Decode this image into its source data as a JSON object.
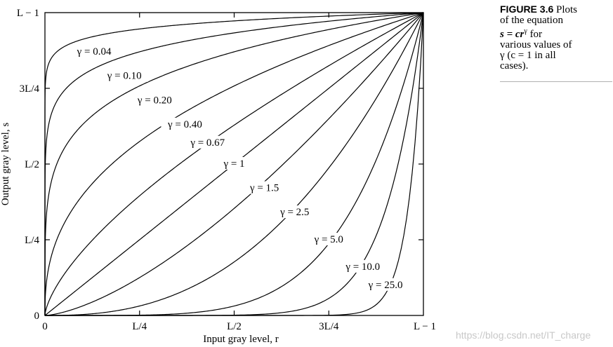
{
  "caption": {
    "figure": "FIGURE 3.6",
    "line1": "Plots",
    "line2": "of the equation",
    "line3": "s = cr",
    "line3_sup": "γ",
    "line3_tail": " for",
    "line4": "various values of",
    "line5": "γ (c = 1 in all",
    "line6": "cases)."
  },
  "watermark": "https://blog.csdn.net/IT_charge",
  "chart_data": {
    "type": "line",
    "title": "",
    "xlabel": "Input gray level, r",
    "ylabel": "Output gray level, s",
    "xlim": [
      0,
      1
    ],
    "ylim": [
      0,
      1
    ],
    "x_ticks": [
      {
        "value": 0,
        "label": "0"
      },
      {
        "value": 0.25,
        "label": "L/4"
      },
      {
        "value": 0.5,
        "label": "L/2"
      },
      {
        "value": 0.75,
        "label": "3L/4"
      },
      {
        "value": 1,
        "label": "L − 1"
      }
    ],
    "y_ticks": [
      {
        "value": 0,
        "label": "0"
      },
      {
        "value": 0.25,
        "label": "L/4"
      },
      {
        "value": 0.5,
        "label": "L/2"
      },
      {
        "value": 0.75,
        "label": "3L/4"
      },
      {
        "value": 1,
        "label": "L − 1"
      }
    ],
    "grid": false,
    "line_color": "#000000",
    "series": [
      {
        "gamma": 0.04,
        "name": "γ = 0.04",
        "label_x": 0.13
      },
      {
        "gamma": 0.1,
        "name": "γ = 0.10",
        "label_x": 0.21
      },
      {
        "gamma": 0.2,
        "name": "γ = 0.20",
        "label_x": 0.29
      },
      {
        "gamma": 0.4,
        "name": "γ = 0.40",
        "label_x": 0.37
      },
      {
        "gamma": 0.67,
        "name": "γ = 0.67",
        "label_x": 0.43
      },
      {
        "gamma": 1,
        "name": "γ = 1",
        "label_x": 0.5
      },
      {
        "gamma": 1.5,
        "name": "γ = 1.5",
        "label_x": 0.58
      },
      {
        "gamma": 2.5,
        "name": "γ = 2.5",
        "label_x": 0.66
      },
      {
        "gamma": 5.0,
        "name": "γ = 5.0",
        "label_x": 0.75
      },
      {
        "gamma": 10.0,
        "name": "γ = 10.0",
        "label_x": 0.84
      },
      {
        "gamma": 25.0,
        "name": "γ = 25.0",
        "label_x": 0.9
      }
    ]
  }
}
